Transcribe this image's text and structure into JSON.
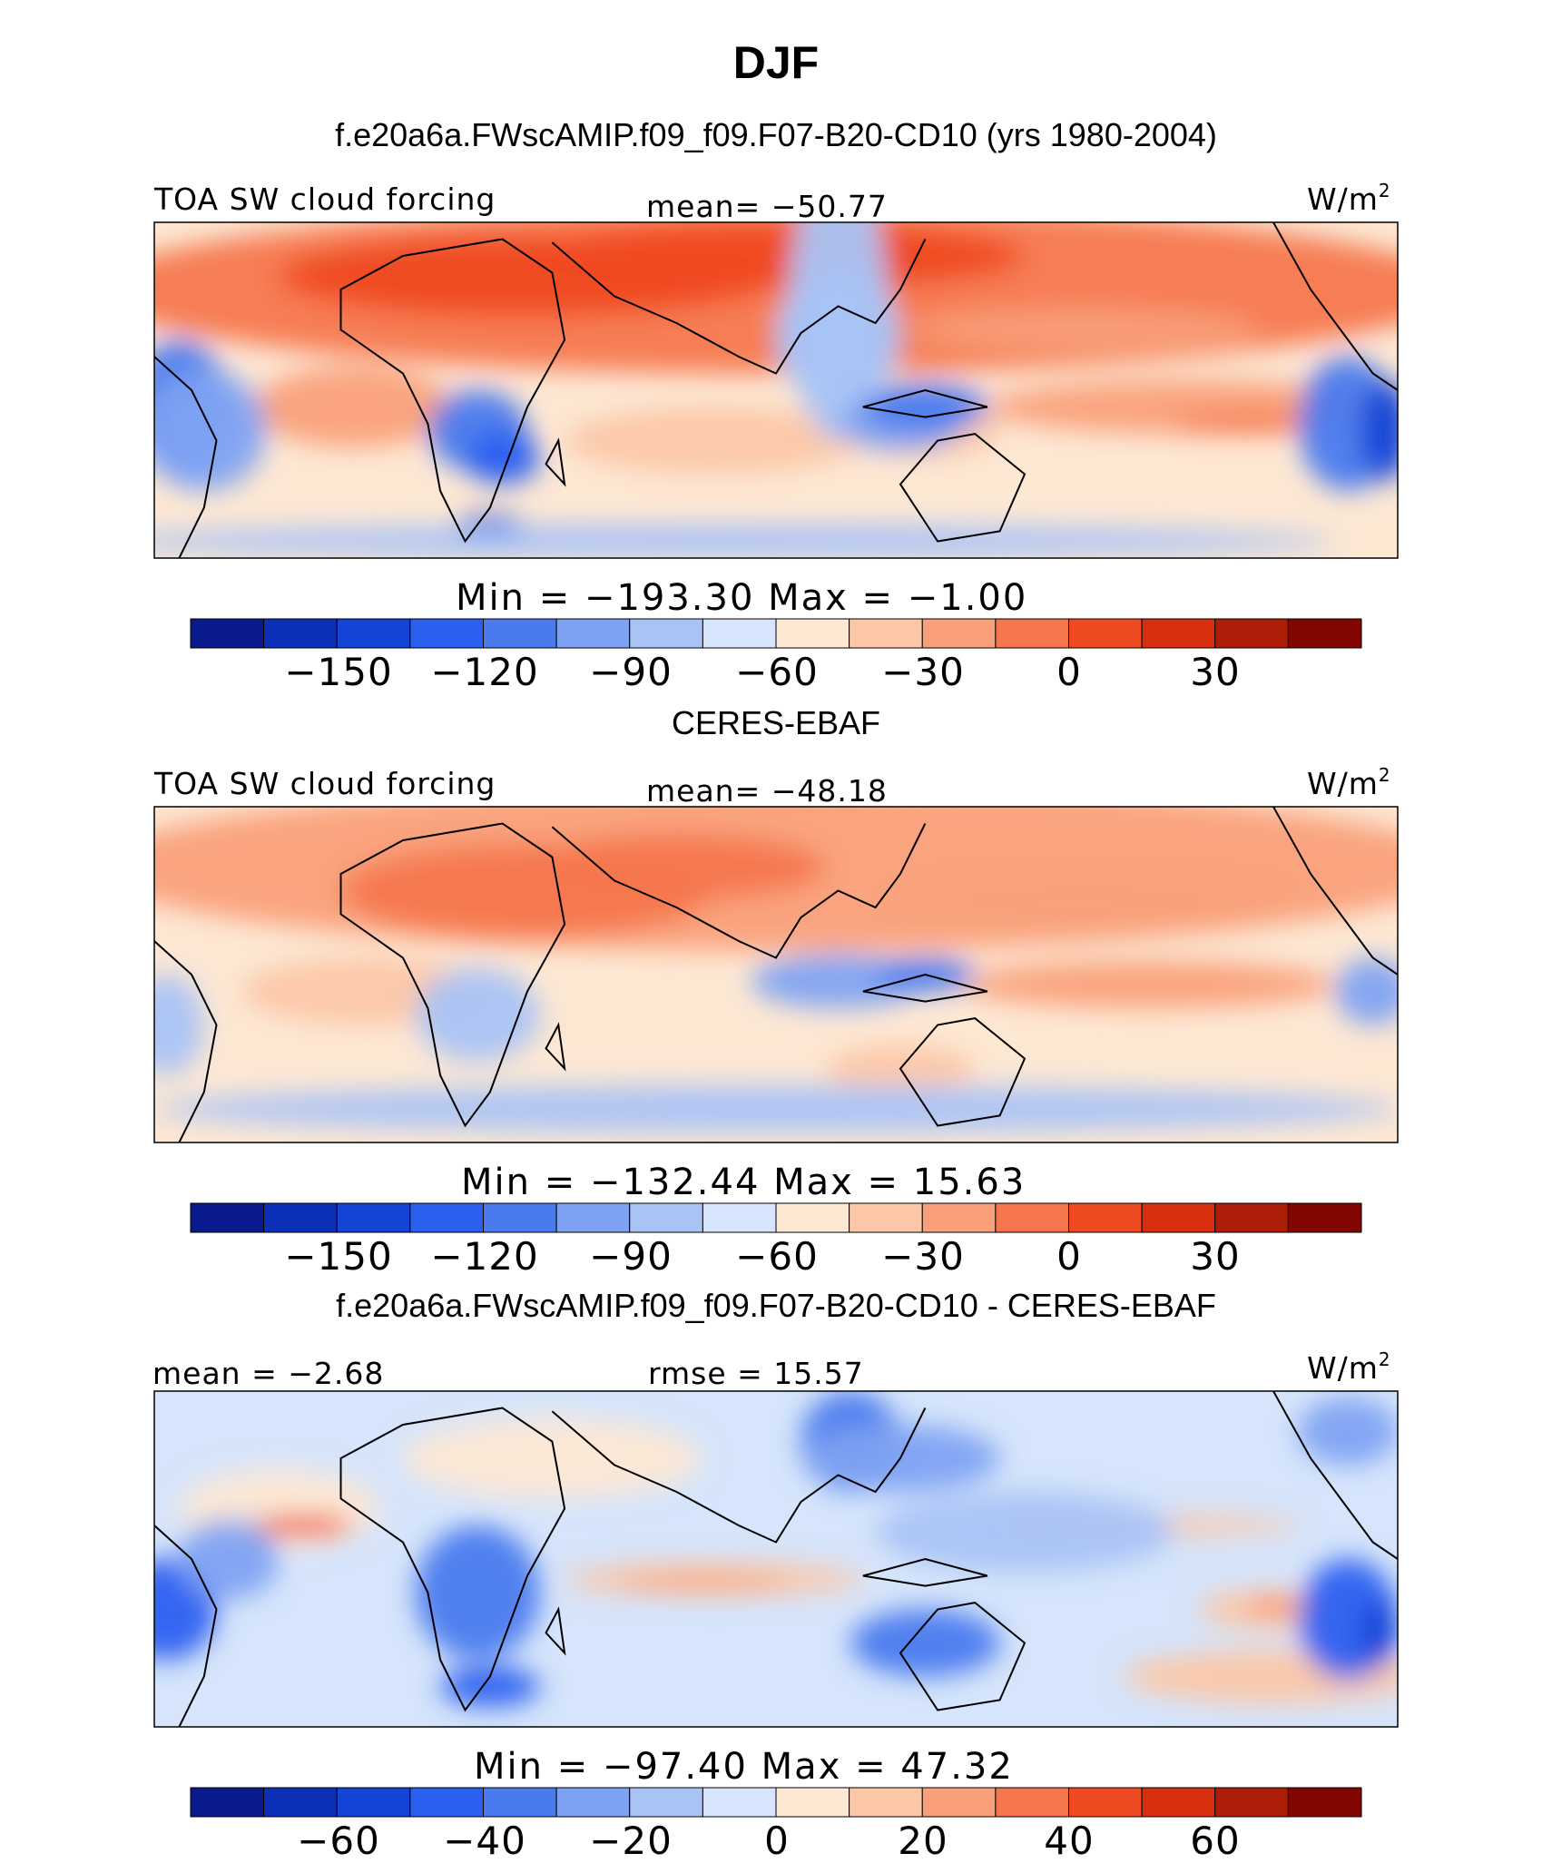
{
  "title": "DJF",
  "colors": {
    "levels_palette": [
      "#0a1a8c",
      "#0c2fb8",
      "#1445d6",
      "#2b5ff0",
      "#4a7aee",
      "#7ea2f2",
      "#a9c3f5",
      "#d6e5fb",
      "#fde8d4",
      "#fcc7a6",
      "#f9a07a",
      "#f6774e",
      "#f04a22",
      "#d8300e",
      "#ae1d08",
      "#820600"
    ],
    "coastline": "#000000"
  },
  "chart_data": [
    {
      "type": "heatmap",
      "title": "f.e20a6a.FWscAMIP.f09_f09.F07-B20-CD10 (yrs 1980-2004)",
      "left_label": "TOA SW cloud forcing",
      "center_label": "mean= −50.77",
      "units": "W/m",
      "units_sup": "2",
      "stats": "Min = −193.30 Max = −1.00",
      "colorbar_ticks": [
        "−150",
        "−120",
        "−90",
        "−60",
        "−30",
        "0",
        "30"
      ],
      "mean": -50.77,
      "min": -193.3,
      "max": -1.0
    },
    {
      "type": "heatmap",
      "title": "CERES-EBAF",
      "left_label": "TOA SW cloud forcing",
      "center_label": "mean= −48.18",
      "units": "W/m",
      "units_sup": "2",
      "stats": "Min = −132.44 Max = 15.63",
      "colorbar_ticks": [
        "−150",
        "−120",
        "−90",
        "−60",
        "−30",
        "0",
        "30"
      ],
      "mean": -48.18,
      "min": -132.44,
      "max": 15.63
    },
    {
      "type": "heatmap",
      "title": "f.e20a6a.FWscAMIP.f09_f09.F07-B20-CD10 - CERES-EBAF",
      "left_label": "mean = −2.68",
      "center_label": "rmse = 15.57",
      "units": "W/m",
      "units_sup": "2",
      "stats": "Min = −97.40 Max = 47.32",
      "colorbar_ticks": [
        "−60",
        "−40",
        "−20",
        "0",
        "20",
        "40",
        "60"
      ],
      "mean": -2.68,
      "rmse": 15.57,
      "min": -97.4,
      "max": 47.32
    }
  ]
}
